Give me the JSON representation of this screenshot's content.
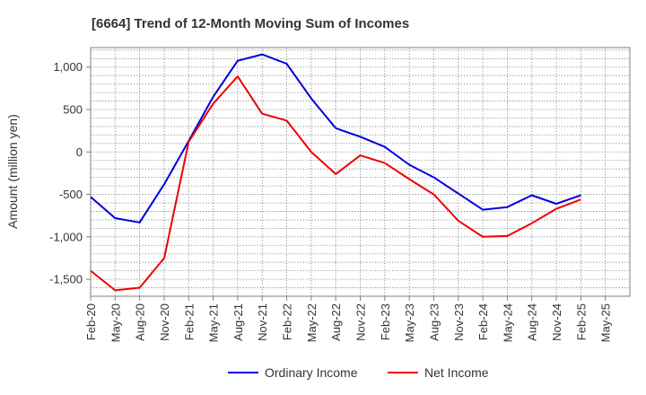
{
  "chart_data": {
    "type": "line",
    "title": "[6664]  Trend of 12-Month Moving Sum of Incomes",
    "xlabel": "",
    "ylabel": "Amount (million yen)",
    "ylim": [
      -1700,
      1230
    ],
    "yticks": [
      1000,
      500,
      0,
      -500,
      -1000,
      -1500
    ],
    "ytick_labels": [
      "1,000",
      "500",
      "0",
      "-500",
      "-1,000",
      "-1,500"
    ],
    "categories": [
      "Feb-20",
      "May-20",
      "Aug-20",
      "Nov-20",
      "Feb-21",
      "May-21",
      "Aug-21",
      "Nov-21",
      "Feb-22",
      "May-22",
      "Aug-22",
      "Nov-22",
      "Feb-23",
      "May-23",
      "Aug-23",
      "Nov-23",
      "Feb-24",
      "May-24",
      "Aug-24",
      "Nov-24",
      "Feb-25",
      "May-25"
    ],
    "grid": true,
    "legend_position": "bottom",
    "series": [
      {
        "name": "Ordinary Income",
        "color": "#0000dd",
        "values": [
          -530,
          -780,
          -830,
          -380,
          130,
          650,
          1075,
          1150,
          1040,
          630,
          280,
          180,
          60,
          -150,
          -300,
          -490,
          -680,
          -650,
          -510,
          -610,
          -510,
          null
        ]
      },
      {
        "name": "Net Income",
        "color": "#ee0000",
        "values": [
          -1400,
          -1630,
          -1600,
          -1250,
          120,
          570,
          890,
          450,
          370,
          0,
          -260,
          -40,
          -130,
          -320,
          -500,
          -810,
          -1000,
          -990,
          -840,
          -670,
          -560,
          null
        ]
      }
    ]
  }
}
